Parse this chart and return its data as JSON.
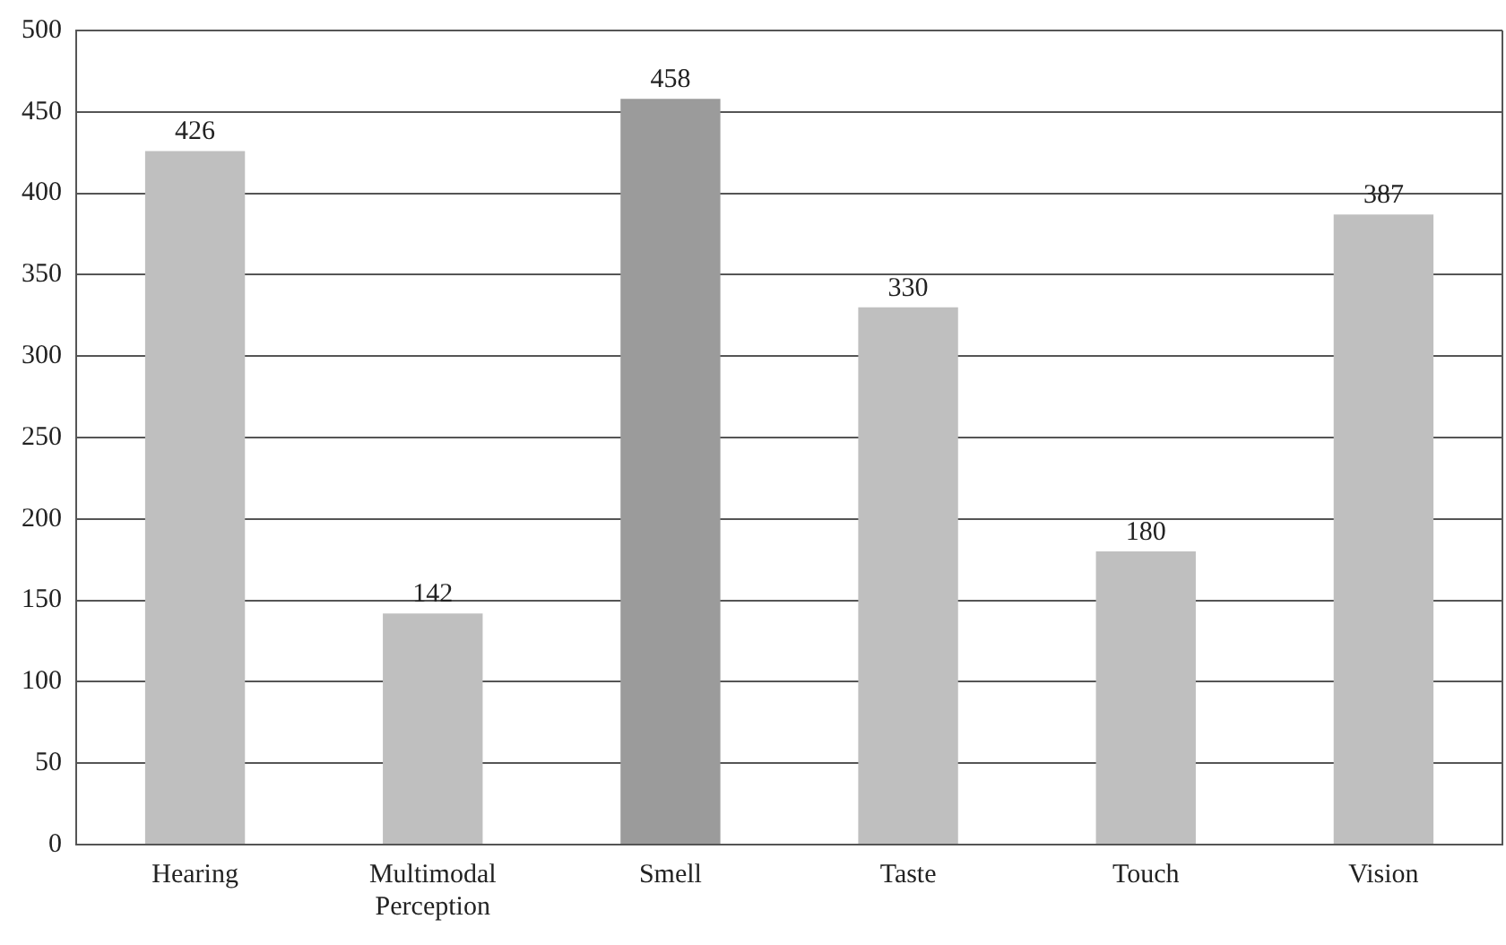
{
  "chart_data": {
    "type": "bar",
    "categories": [
      "Hearing",
      "Multimodal Perception",
      "Smell",
      "Taste",
      "Touch",
      "Vision"
    ],
    "values": [
      426,
      142,
      458,
      330,
      180,
      387
    ],
    "colors": [
      "#bfbfbf",
      "#bfbfbf",
      "#9b9b9b",
      "#bfbfbf",
      "#bfbfbf",
      "#bfbfbf"
    ],
    "ylim": [
      0,
      500
    ],
    "yticks": [
      0,
      50,
      100,
      150,
      200,
      250,
      300,
      350,
      400,
      450,
      500
    ],
    "grid": "y",
    "data_labels": true,
    "legend": false
  }
}
